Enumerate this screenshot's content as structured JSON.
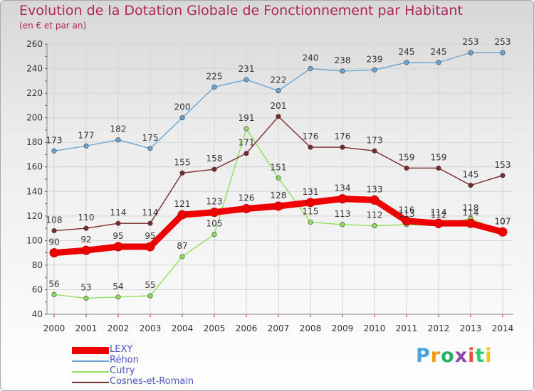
{
  "title": "Evolution de la Dotation Globale de Fonctionnement par Habitant",
  "subtitle": "(en € et par an)",
  "logo": {
    "text": "Proxiti",
    "colors": [
      "#4aa3df",
      "#f39c12",
      "#27ae60",
      "#8e44ad",
      "#e74c3c",
      "#2ecc71",
      "#f1c40f"
    ]
  },
  "chart_data": {
    "type": "line",
    "title": "Evolution de la Dotation Globale de Fonctionnement par Habitant",
    "subtitle": "(en € et par an)",
    "categories": [
      "2000",
      "2001",
      "2002",
      "2003",
      "2004",
      "2005",
      "2006",
      "2007",
      "2008",
      "2009",
      "2010",
      "2011",
      "2012",
      "2013",
      "2014"
    ],
    "ylim": [
      40,
      260
    ],
    "yticks": [
      40,
      60,
      80,
      100,
      120,
      140,
      160,
      180,
      200,
      220,
      240,
      260
    ],
    "grid": true,
    "legend_position": "bottom-left",
    "series": [
      {
        "name": "LEXY",
        "color": "#ee0000",
        "values": [
          90,
          92,
          95,
          95,
          121,
          123,
          126,
          128,
          131,
          134,
          133,
          116,
          114,
          114,
          107
        ],
        "labels": [
          "90",
          "92",
          "95",
          "95",
          "121",
          "123",
          "126",
          "128",
          "131",
          "134",
          "133",
          "116",
          "114",
          "114",
          "107"
        ]
      },
      {
        "name": "Réhon",
        "color": "#6aa6d6",
        "values": [
          173,
          177,
          182,
          175,
          200,
          225,
          231,
          222,
          240,
          238,
          239,
          245,
          245,
          253,
          253
        ],
        "labels": [
          "173",
          "177",
          "182",
          "175",
          "200",
          "225",
          "231",
          "222",
          "240",
          "238",
          "239",
          "245",
          "245",
          "253",
          "253"
        ]
      },
      {
        "name": "Cutry",
        "color": "#8ee05a",
        "values": [
          56,
          53,
          54,
          55,
          87,
          105,
          191,
          151,
          115,
          113,
          112,
          113,
          112,
          118,
          107
        ],
        "labels": [
          "56",
          "53",
          "54",
          "55",
          "87",
          "105",
          "191",
          "151",
          "115",
          "113",
          "112",
          "113",
          "112",
          "118",
          "107"
        ]
      },
      {
        "name": "Cosnes-et-Romain",
        "color": "#7a2a2a",
        "values": [
          108,
          110,
          114,
          114,
          155,
          158,
          171,
          201,
          176,
          176,
          173,
          159,
          159,
          145,
          153
        ],
        "labels": [
          "108",
          "110",
          "114",
          "114",
          "155",
          "158",
          "171",
          "201",
          "176",
          "176",
          "173",
          "159",
          "159",
          "145",
          "153"
        ]
      }
    ]
  }
}
